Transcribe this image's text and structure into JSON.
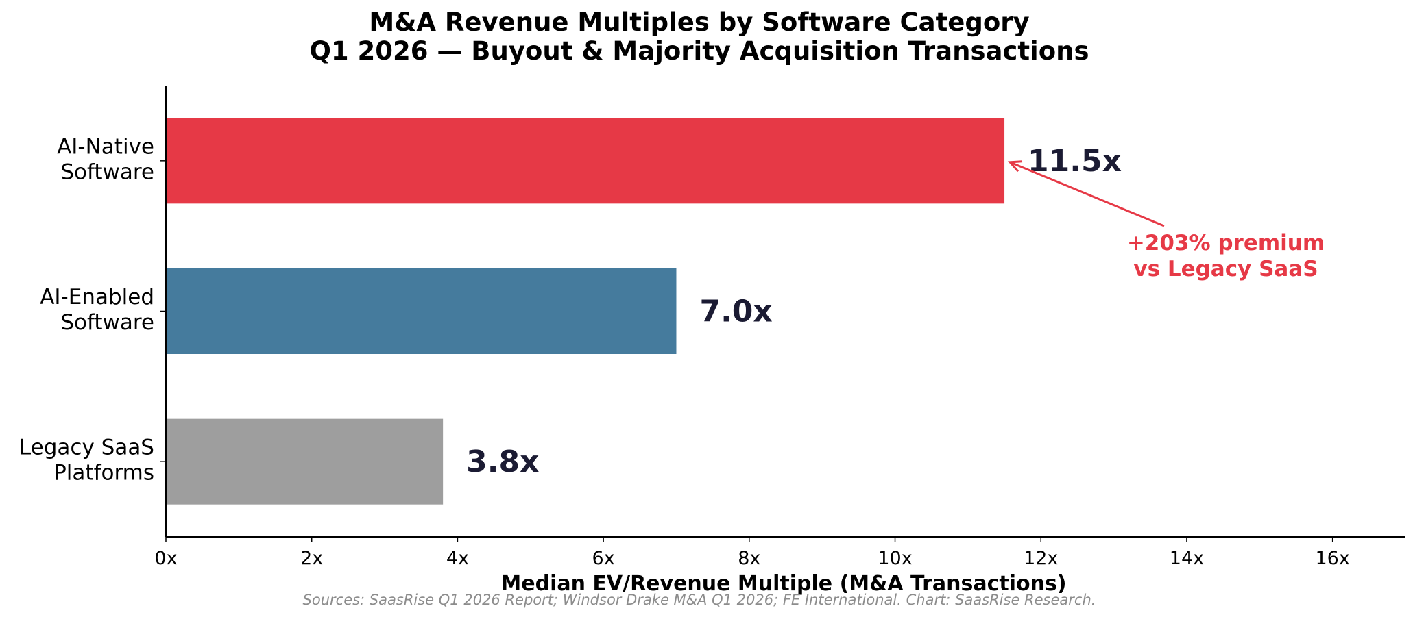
{
  "chart_data": {
    "type": "bar",
    "orientation": "horizontal",
    "title_line1": "M&A Revenue Multiples by Software Category",
    "title_line2": "Q1 2026 — Buyout & Majority Acquisition Transactions",
    "xlabel": "Median EV/Revenue Multiple (M&A Transactions)",
    "ylabel": "",
    "xlim": [
      0,
      17
    ],
    "x_ticks": [
      0,
      2,
      4,
      6,
      8,
      10,
      12,
      14,
      16
    ],
    "tick_suffix": "x",
    "grid": false,
    "categories": [
      [
        "AI-Native",
        "Software"
      ],
      [
        "AI-Enabled",
        "Software"
      ],
      [
        "Legacy SaaS",
        "Platforms"
      ]
    ],
    "values": [
      11.5,
      7.0,
      3.8
    ],
    "value_labels": [
      "11.5x",
      "7.0x",
      "3.8x"
    ],
    "colors": [
      "#e63946",
      "#457b9d",
      "#9e9e9e"
    ],
    "annotation": {
      "lines": [
        "+203% premium",
        "vs Legacy SaaS"
      ],
      "color": "#e63946",
      "points_to_category": 0
    },
    "source": "Sources: SaasRise Q1 2026 Report; Windsor Drake M&A Q1 2026; FE International. Chart: SaasRise Research."
  }
}
